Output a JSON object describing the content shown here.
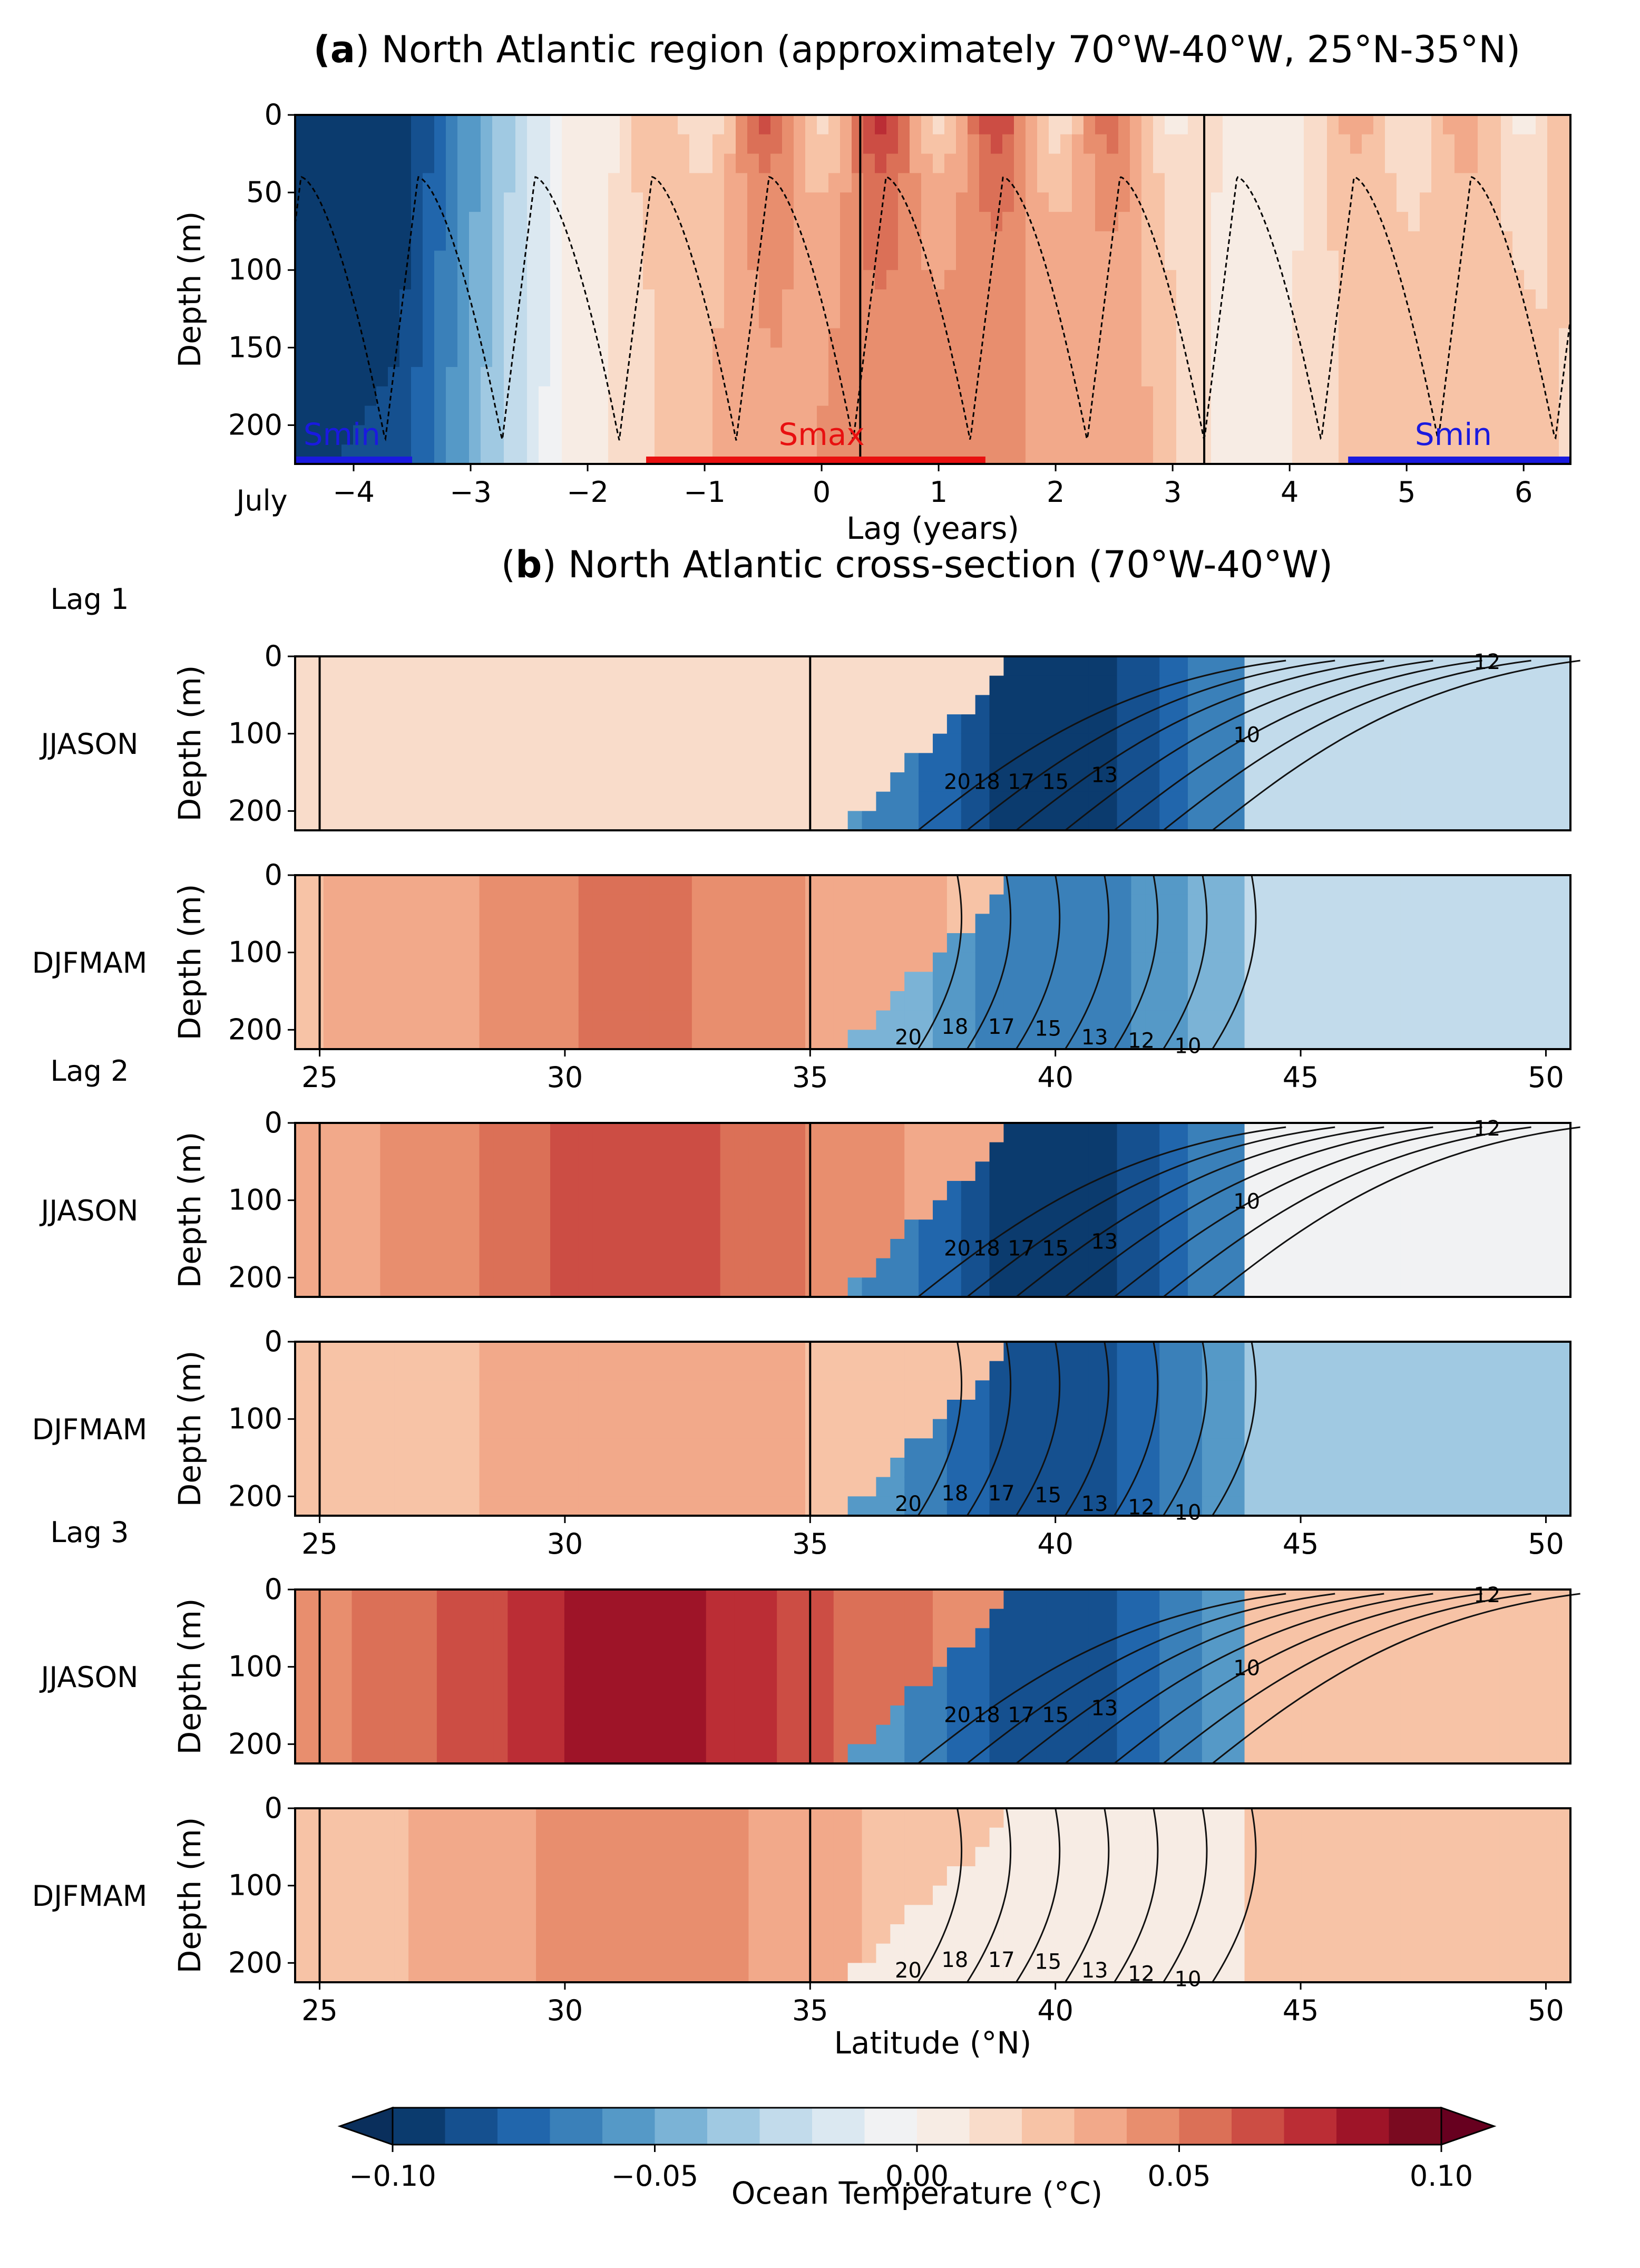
{
  "chart_data": [
    {
      "id": "a",
      "type": "heatmap",
      "title_bold": "a",
      "title": "North Atlantic region (approximately 70°W-40°W, 25°N-35°N)",
      "xlabel": "Lag (years)",
      "ylabel": "Depth (m)",
      "x_start_label": "July",
      "xlim": [
        -4.5,
        6.4
      ],
      "ylim": [
        225,
        0
      ],
      "xticks": [
        -4,
        -3,
        -2,
        -1,
        0,
        1,
        2,
        3,
        4,
        5,
        6
      ],
      "yticks": [
        0,
        50,
        100,
        150,
        200
      ],
      "vertical_lines": [
        0.33,
        3.27
      ],
      "mld_cycle_years": 1,
      "mld_range_m": [
        40,
        210
      ],
      "periods": [
        {
          "label": "Smin",
          "color": "#1a1adf",
          "start": -4.5,
          "end": -3.5,
          "label_x": -4.1
        },
        {
          "label": "Smax",
          "color": "#e81010",
          "start": -1.5,
          "end": 1.4,
          "label_x": 0.0
        },
        {
          "label": "Smin",
          "color": "#1a1adf",
          "start": 4.5,
          "end": 6.4,
          "label_x": 5.4
        }
      ],
      "anomaly_profile": {
        "lag": [
          -4.5,
          -3.6,
          -3.2,
          -2.8,
          -2.2,
          -1.6,
          -1.0,
          -0.5,
          0.0,
          0.4,
          1.0,
          1.6,
          2.2,
          2.8,
          3.2,
          3.6,
          4.2,
          4.8,
          5.4,
          6.0,
          6.4
        ],
        "temp_c": [
          -0.11,
          -0.1,
          -0.07,
          -0.04,
          0.0,
          0.02,
          0.04,
          0.05,
          0.055,
          0.06,
          0.06,
          0.055,
          0.05,
          0.04,
          0.02,
          0.0,
          0.02,
          0.035,
          0.03,
          0.03,
          0.025
        ]
      }
    },
    {
      "id": "b",
      "type": "heatmap",
      "title_bold": "b",
      "title": "North Atlantic cross-section (70°W-40°W)",
      "xlabel": "Latitude (°N)",
      "ylabel": "Depth (m)",
      "xlim": [
        24.5,
        50.5
      ],
      "ylim": [
        225,
        0
      ],
      "xticks": [
        25,
        30,
        35,
        40,
        45,
        50
      ],
      "yticks": [
        0,
        100,
        200
      ],
      "vertical_lines": [
        25,
        35
      ],
      "isotherm_labels_jjason": [
        "20",
        "18",
        "17",
        "15",
        "13",
        "10",
        "12"
      ],
      "isotherm_labels_djfmam": [
        "20",
        "18",
        "17",
        "15",
        "13",
        "12",
        "10"
      ],
      "panels": [
        {
          "lag_label": "Lag 1",
          "season": "JJASON",
          "subtropical_c": 0.015,
          "gulf_stream_c": -0.1,
          "north_c": -0.02
        },
        {
          "lag_label": "",
          "season": "DJFMAM",
          "subtropical_c": 0.04,
          "gulf_stream_c": -0.07,
          "north_c": -0.025
        },
        {
          "lag_label": "Lag 2",
          "season": "JJASON",
          "subtropical_c": 0.05,
          "gulf_stream_c": -0.1,
          "north_c": -0.01
        },
        {
          "lag_label": "",
          "season": "DJFMAM",
          "subtropical_c": 0.03,
          "gulf_stream_c": -0.09,
          "north_c": -0.04
        },
        {
          "lag_label": "Lag 3",
          "season": "JJASON",
          "subtropical_c": 0.065,
          "gulf_stream_c": -0.09,
          "north_c": 0.02
        },
        {
          "lag_label": "",
          "season": "DJFMAM",
          "subtropical_c": 0.035,
          "gulf_stream_c": 0.005,
          "north_c": 0.02
        }
      ]
    },
    {
      "id": "colorbar",
      "type": "colorbar",
      "label": "Ocean Temperature (°C)",
      "range": [
        -0.1,
        0.1
      ],
      "ticks": [
        -0.1,
        -0.05,
        0.0,
        0.05,
        0.1
      ],
      "tick_labels": [
        "−0.10",
        "−0.05",
        "0.00",
        "0.05",
        "0.10"
      ],
      "levels": 22
    }
  ],
  "colors": {
    "palette": [
      "#0b3b6e",
      "#15508f",
      "#2166ac",
      "#3a80b9",
      "#5599c7",
      "#7bb3d6",
      "#a0c9e2",
      "#c2dbeb",
      "#dbe8f1",
      "#f1f2f3",
      "#f7ece4",
      "#f9dcca",
      "#f7c3a6",
      "#f2a98a",
      "#e88e6e",
      "#db7057",
      "#cc4d44",
      "#bb2d35",
      "#9e1428",
      "#7a0a20"
    ],
    "extend_low": "#0a2f5c",
    "extend_high": "#67001f"
  }
}
